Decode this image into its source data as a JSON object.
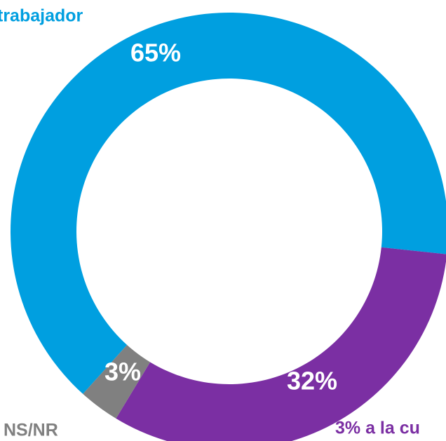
{
  "chart_data": {
    "type": "donut",
    "categories": [
      "trabajador",
      "3% a la cu",
      "NS/NR"
    ],
    "values": [
      65,
      32,
      3
    ],
    "value_labels": [
      "65%",
      "32%",
      "3%"
    ],
    "colors": [
      "#009fe0",
      "#7b2fa3",
      "#808080"
    ]
  }
}
